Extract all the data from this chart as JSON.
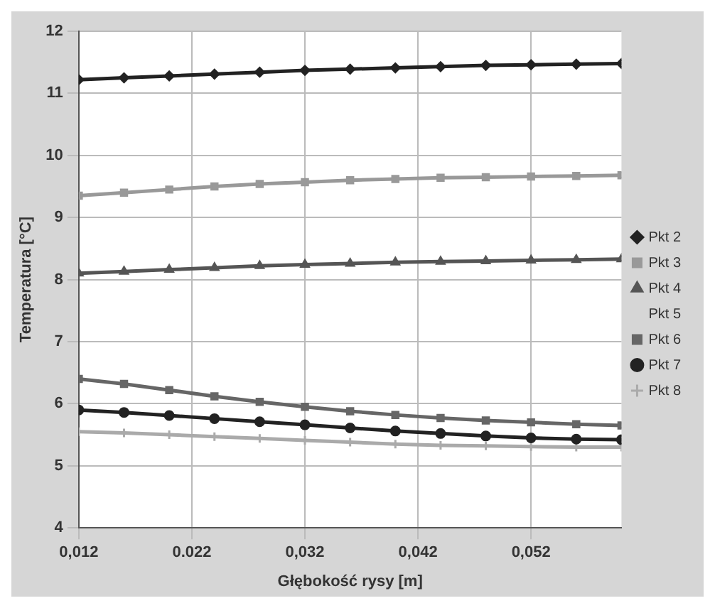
{
  "chart_data": {
    "type": "line",
    "xlabel": "Głębokość rysy [m]",
    "ylabel": "Temperatura [°C]",
    "x": [
      0.012,
      0.016,
      0.02,
      0.024,
      0.028,
      0.032,
      0.036,
      0.04,
      0.044,
      0.048,
      0.052,
      0.056,
      0.06
    ],
    "xlim": [
      0.012,
      0.06
    ],
    "xticks": [
      {
        "value": 0.012,
        "label": "0,012"
      },
      {
        "value": 0.022,
        "label": "0.022"
      },
      {
        "value": 0.032,
        "label": "0,032"
      },
      {
        "value": 0.042,
        "label": "0,042"
      },
      {
        "value": 0.052,
        "label": "0,052"
      }
    ],
    "ylim": [
      4,
      12
    ],
    "yticks": [
      4,
      5,
      6,
      7,
      8,
      9,
      10,
      11,
      12
    ],
    "grid": true,
    "legend": "right",
    "line_style": "solid",
    "series": [
      {
        "name": "Pkt 2",
        "color": "#222222",
        "marker": "diamond",
        "values": [
          11.22,
          11.25,
          11.28,
          11.31,
          11.34,
          11.37,
          11.39,
          11.41,
          11.43,
          11.45,
          11.46,
          11.47,
          11.48
        ]
      },
      {
        "name": "Pkt 3",
        "color": "#999999",
        "marker": "square",
        "values": [
          9.35,
          9.4,
          9.45,
          9.5,
          9.54,
          9.57,
          9.6,
          9.62,
          9.64,
          9.65,
          9.66,
          9.67,
          9.68
        ]
      },
      {
        "name": "Pkt 4",
        "color": "#555555",
        "marker": "triangle",
        "values": [
          8.1,
          8.13,
          8.16,
          8.19,
          8.22,
          8.24,
          8.26,
          8.28,
          8.29,
          8.3,
          8.31,
          8.32,
          8.33
        ]
      },
      {
        "name": "Pkt 5",
        "marker": "none",
        "values": [
          null,
          null,
          null,
          null,
          null,
          null,
          null,
          null,
          null,
          null,
          null,
          null,
          null
        ]
      },
      {
        "name": "Pkt 6",
        "color": "#666666",
        "marker": "square",
        "values": [
          6.4,
          6.32,
          6.22,
          6.12,
          6.03,
          5.95,
          5.88,
          5.82,
          5.77,
          5.73,
          5.7,
          5.67,
          5.65
        ]
      },
      {
        "name": "Pkt 7",
        "color": "#222222",
        "marker": "circle",
        "values": [
          5.9,
          5.86,
          5.81,
          5.76,
          5.71,
          5.66,
          5.61,
          5.56,
          5.52,
          5.48,
          5.45,
          5.43,
          5.42
        ]
      },
      {
        "name": "Pkt 8",
        "color": "#aaaaaa",
        "marker": "cross",
        "values": [
          5.55,
          5.53,
          5.5,
          5.47,
          5.44,
          5.41,
          5.38,
          5.35,
          5.33,
          5.32,
          5.31,
          5.3,
          5.3
        ]
      }
    ]
  }
}
